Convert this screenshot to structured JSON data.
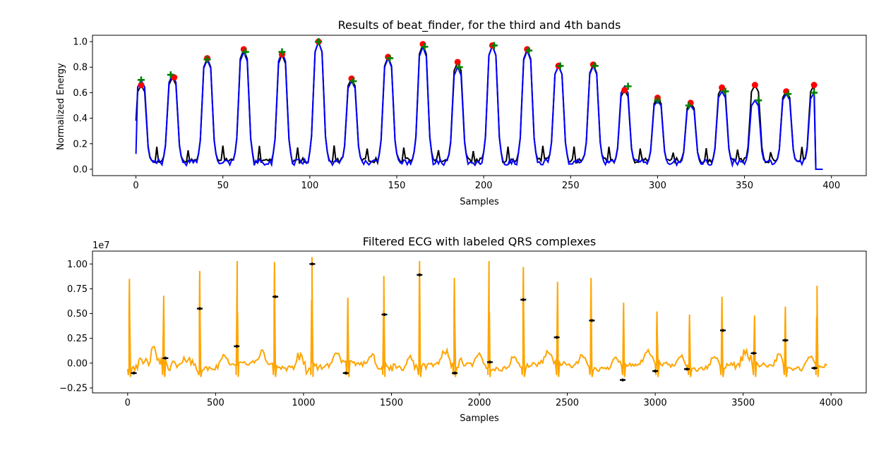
{
  "chart_data": [
    {
      "type": "line",
      "title": "Results of beat_finder, for the third and 4th bands",
      "xlabel": "Samples",
      "ylabel": "Normalized Energy",
      "xlim": [
        -25,
        420
      ],
      "ylim": [
        -0.05,
        1.05
      ],
      "xticks": [
        0,
        50,
        100,
        150,
        200,
        250,
        300,
        350,
        400
      ],
      "yticks": [
        0.0,
        0.2,
        0.4,
        0.6,
        0.8,
        1.0
      ],
      "xtick_labels": [
        "0",
        "50",
        "100",
        "150",
        "200",
        "250",
        "300",
        "350",
        "400"
      ],
      "ytick_labels": [
        "0.0",
        "0.2",
        "0.4",
        "0.6",
        "0.8",
        "1.0"
      ],
      "grid": false,
      "colors": {
        "black": "#000000",
        "blue": "#0000ff",
        "red": "#ff0000",
        "green": "#008000"
      },
      "beat_peaks": [
        [
          3,
          0.66,
          0.7
        ],
        [
          21,
          0.72,
          0.74
        ],
        [
          41,
          0.87,
          0.86
        ],
        [
          62,
          0.94,
          0.92
        ],
        [
          84,
          0.9,
          0.92
        ],
        [
          105,
          1.0,
          1.0
        ],
        [
          124,
          0.71,
          0.69
        ],
        [
          145,
          0.88,
          0.87
        ],
        [
          165,
          0.98,
          0.96
        ],
        [
          185,
          0.84,
          0.8
        ],
        [
          205,
          0.97,
          0.97
        ],
        [
          225,
          0.94,
          0.93
        ],
        [
          243,
          0.81,
          0.81
        ],
        [
          263,
          0.82,
          0.81
        ],
        [
          281,
          0.62,
          0.65
        ],
        [
          300,
          0.56,
          0.54
        ],
        [
          319,
          0.52,
          0.5
        ],
        [
          337,
          0.64,
          0.61
        ],
        [
          356,
          0.66,
          0.54
        ],
        [
          374,
          0.61,
          0.59
        ],
        [
          390,
          0.66,
          0.6
        ]
      ],
      "red_markers": [
        [
          3,
          0.66
        ],
        [
          22,
          0.72
        ],
        [
          41,
          0.87
        ],
        [
          62,
          0.94
        ],
        [
          84,
          0.9
        ],
        [
          105,
          1.0
        ],
        [
          124,
          0.71
        ],
        [
          145,
          0.88
        ],
        [
          165,
          0.98
        ],
        [
          185,
          0.84
        ],
        [
          205,
          0.97
        ],
        [
          225,
          0.94
        ],
        [
          243,
          0.81
        ],
        [
          263,
          0.82
        ],
        [
          281,
          0.62
        ],
        [
          300,
          0.56
        ],
        [
          319,
          0.52
        ],
        [
          337,
          0.64
        ],
        [
          356,
          0.66
        ],
        [
          374,
          0.61
        ],
        [
          390,
          0.66
        ]
      ],
      "green_markers": [
        [
          3,
          0.7
        ],
        [
          20,
          0.74
        ],
        [
          41,
          0.86
        ],
        [
          63,
          0.92
        ],
        [
          84,
          0.92
        ],
        [
          105,
          1.0
        ],
        [
          125,
          0.69
        ],
        [
          146,
          0.87
        ],
        [
          166,
          0.96
        ],
        [
          186,
          0.8
        ],
        [
          206,
          0.97
        ],
        [
          226,
          0.93
        ],
        [
          244,
          0.81
        ],
        [
          264,
          0.81
        ],
        [
          283,
          0.65
        ],
        [
          300,
          0.54
        ],
        [
          318,
          0.5
        ],
        [
          339,
          0.61
        ],
        [
          358,
          0.54
        ],
        [
          375,
          0.59
        ],
        [
          390,
          0.6
        ]
      ]
    },
    {
      "type": "line",
      "title": "Filtered ECG with labeled QRS complexes",
      "xlabel": "Samples",
      "ylabel": "",
      "offset_text": "1e7",
      "xlim": [
        -200,
        4200
      ],
      "ylim": [
        -0.3,
        1.13
      ],
      "xticks": [
        0,
        500,
        1000,
        1500,
        2000,
        2500,
        3000,
        3500,
        4000
      ],
      "yticks": [
        -0.25,
        0.0,
        0.25,
        0.5,
        0.75,
        1.0
      ],
      "xtick_labels": [
        "0",
        "500",
        "1000",
        "1500",
        "2000",
        "2500",
        "3000",
        "3500",
        "4000"
      ],
      "ytick_labels": [
        "−0.25",
        "0.00",
        "0.25",
        "0.50",
        "0.75",
        "1.00"
      ],
      "grid": false,
      "colors": {
        "line": "#ffa500",
        "markers": "#000000"
      },
      "r_peaks": [
        [
          10,
          0.85
        ],
        [
          205,
          0.68
        ],
        [
          410,
          0.93
        ],
        [
          623,
          1.03
        ],
        [
          835,
          1.02
        ],
        [
          1048,
          1.07
        ],
        [
          1252,
          0.66
        ],
        [
          1457,
          0.88
        ],
        [
          1660,
          1.03
        ],
        [
          1858,
          0.86
        ],
        [
          2055,
          1.03
        ],
        [
          2250,
          0.97
        ],
        [
          2445,
          0.82
        ],
        [
          2635,
          0.86
        ],
        [
          2820,
          0.61
        ],
        [
          3010,
          0.52
        ],
        [
          3195,
          0.49
        ],
        [
          3380,
          0.67
        ],
        [
          3565,
          0.48
        ],
        [
          3740,
          0.57
        ],
        [
          3920,
          0.78
        ]
      ],
      "qrs_labels": [
        [
          35,
          -0.1
        ],
        [
          215,
          0.05
        ],
        [
          410,
          0.55
        ],
        [
          620,
          0.17
        ],
        [
          840,
          0.67
        ],
        [
          1050,
          1.0
        ],
        [
          1240,
          -0.1
        ],
        [
          1460,
          0.49
        ],
        [
          1660,
          0.89
        ],
        [
          1860,
          -0.1
        ],
        [
          2060,
          0.01
        ],
        [
          2250,
          0.64
        ],
        [
          2440,
          0.26
        ],
        [
          2640,
          0.43
        ],
        [
          2815,
          -0.17
        ],
        [
          3000,
          -0.08
        ],
        [
          3180,
          -0.06
        ],
        [
          3385,
          0.33
        ],
        [
          3560,
          0.1
        ],
        [
          3740,
          0.23
        ],
        [
          3905,
          -0.05
        ]
      ]
    }
  ]
}
